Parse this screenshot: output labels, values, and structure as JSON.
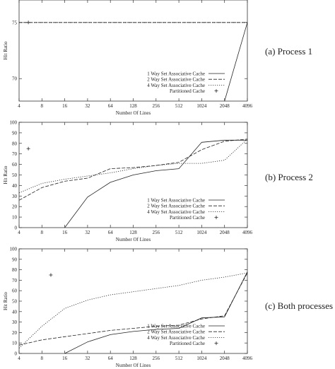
{
  "chart_data": [
    {
      "type": "line",
      "caption": "(a) Process 1",
      "xlabel": "Number Of Lines",
      "ylabel": "Hit Ratio",
      "xscale": "log2",
      "x_ticks": [
        "4",
        "8",
        "16",
        "32",
        "64",
        "128",
        "256",
        "512",
        "1024",
        "2048",
        "4096"
      ],
      "y_ticks": [
        "70",
        "75"
      ],
      "ylim": [
        68,
        77
      ],
      "legend_position": "bottom-right",
      "series": [
        {
          "name": "1 Way Set Associative Cache",
          "style": "solid",
          "x": [
            2048,
            4096
          ],
          "y": [
            68,
            75
          ]
        },
        {
          "name": "2 Way Set Associative Cache",
          "style": "dashed",
          "x": [
            4,
            4096
          ],
          "y": [
            75,
            75
          ]
        },
        {
          "name": "4 Way Set Associative Cache",
          "style": "dotted",
          "x": [
            4,
            4096
          ],
          "y": [
            75,
            75
          ]
        },
        {
          "name": "Partitioned Cache",
          "style": "marker",
          "x": [
            5.3
          ],
          "y": [
            75
          ]
        }
      ]
    },
    {
      "type": "line",
      "caption": "(b) Process 2",
      "xlabel": "Number Of Lines",
      "ylabel": "Hit Ratio",
      "xscale": "log2",
      "x_ticks": [
        "4",
        "8",
        "16",
        "32",
        "64",
        "128",
        "256",
        "512",
        "1024",
        "2048",
        "4096"
      ],
      "y_ticks": [
        "0",
        "10",
        "20",
        "30",
        "40",
        "50",
        "60",
        "70",
        "80",
        "90",
        "100"
      ],
      "ylim": [
        0,
        100
      ],
      "legend_position": "bottom-right",
      "series": [
        {
          "name": "1 Way Set Associative Cache",
          "style": "solid",
          "x": [
            16,
            32,
            64,
            128,
            256,
            512,
            1024,
            2048,
            4096
          ],
          "y": [
            0,
            29,
            43,
            50,
            54,
            56,
            81,
            83,
            83
          ]
        },
        {
          "name": "2 Way Set Associative Cache",
          "style": "dashed",
          "x": [
            4,
            8,
            16,
            32,
            64,
            128,
            256,
            512,
            1024,
            2048,
            4096
          ],
          "y": [
            26,
            38,
            44,
            47,
            56,
            57,
            59,
            62,
            74,
            82,
            84
          ]
        },
        {
          "name": "4 Way Set Associative Cache",
          "style": "dotted",
          "x": [
            4,
            8,
            16,
            32,
            64,
            128,
            256,
            512,
            1024,
            2048,
            4096
          ],
          "y": [
            33,
            42,
            46,
            49,
            52,
            56,
            59,
            61,
            61,
            64,
            84
          ]
        },
        {
          "name": "Partitioned Cache",
          "style": "marker",
          "x": [
            5.3
          ],
          "y": [
            75
          ]
        }
      ]
    },
    {
      "type": "line",
      "caption": "(c) Both processes",
      "xlabel": "Number Of Lines",
      "ylabel": "Hit Ratio",
      "xscale": "log2",
      "x_ticks": [
        "4",
        "8",
        "16",
        "32",
        "64",
        "128",
        "256",
        "512",
        "1024",
        "2048",
        "4096"
      ],
      "y_ticks": [
        "0",
        "10",
        "20",
        "30",
        "40",
        "50",
        "60",
        "70",
        "80",
        "90",
        "100"
      ],
      "ylim": [
        0,
        100
      ],
      "legend_position": "bottom-right",
      "series": [
        {
          "name": "1 Way Set Associative Cache",
          "style": "solid",
          "x": [
            16,
            32,
            64,
            128,
            256,
            512,
            1024,
            2048,
            4096
          ],
          "y": [
            0,
            11,
            18,
            21,
            23,
            24,
            34,
            35,
            78
          ]
        },
        {
          "name": "2 Way Set Associative Cache",
          "style": "dashed",
          "x": [
            4,
            8,
            16,
            32,
            64,
            128,
            256,
            512,
            1024,
            2048,
            4096
          ],
          "y": [
            8,
            13,
            16,
            19,
            22,
            24,
            26,
            27,
            33,
            36,
            77
          ]
        },
        {
          "name": "4 Way Set Associative Cache",
          "style": "dotted",
          "x": [
            4,
            8,
            16,
            32,
            64,
            128,
            256,
            512,
            1024,
            2048,
            4096
          ],
          "y": [
            5,
            26,
            43,
            51,
            56,
            59,
            62,
            65,
            70,
            73,
            77
          ]
        },
        {
          "name": "Partitioned Cache",
          "style": "marker",
          "x": [
            10.5
          ],
          "y": [
            75
          ]
        }
      ]
    }
  ]
}
